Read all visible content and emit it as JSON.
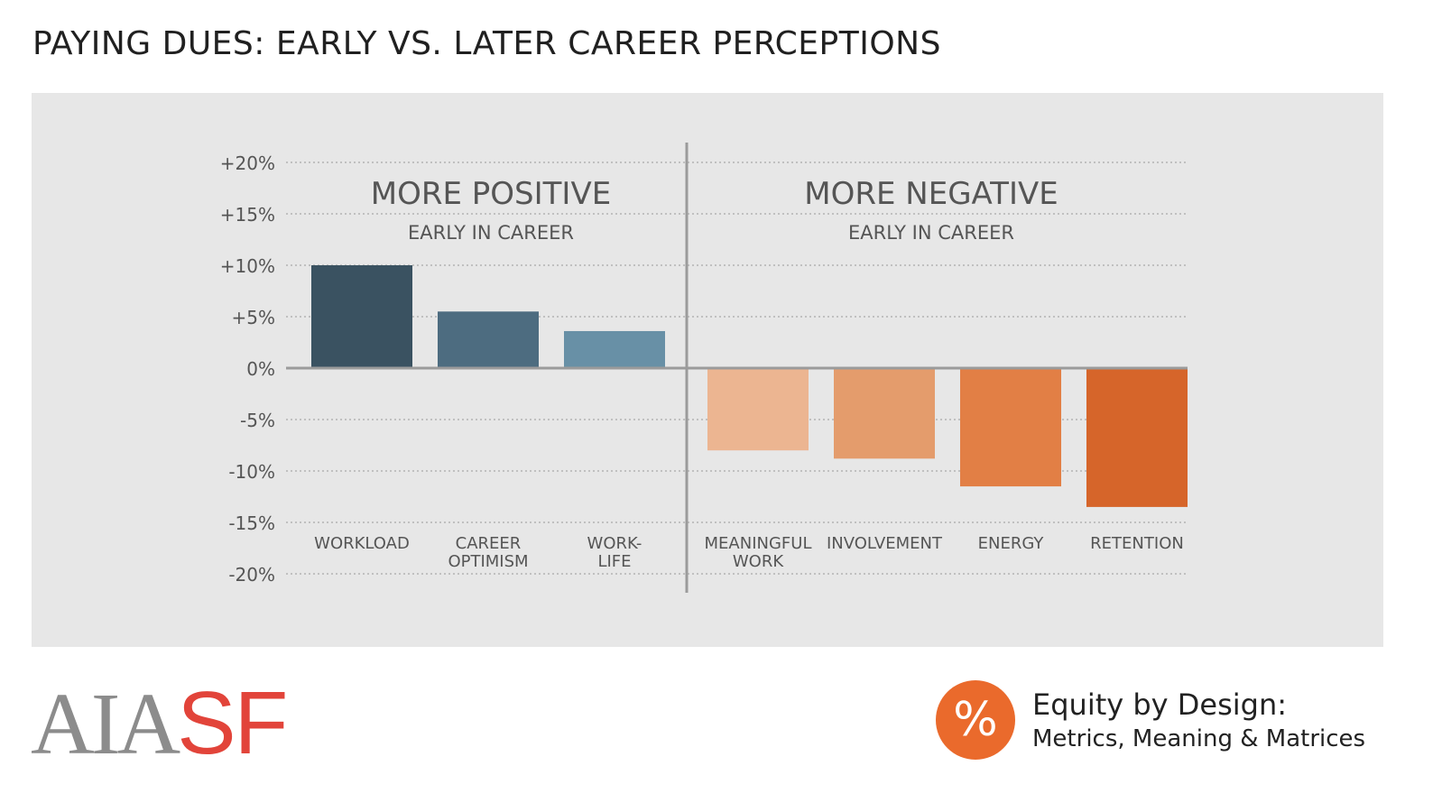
{
  "page": {
    "title": "PAYING DUES: EARLY VS. LATER CAREER PERCEPTIONS"
  },
  "chart_data": {
    "type": "bar",
    "title": "PAYING DUES: EARLY VS. LATER CAREER PERCEPTIONS",
    "ylim": [
      -20,
      20
    ],
    "yticks": [
      20,
      15,
      10,
      5,
      0,
      -5,
      -10,
      -15,
      -20
    ],
    "ytick_labels": [
      "+20%",
      "+15%",
      "+10%",
      "+5%",
      "0%",
      "-5%",
      "-10%",
      "-15%",
      "-20%"
    ],
    "grid": true,
    "sections": [
      {
        "heading": "MORE POSITIVE",
        "subheading": "EARLY IN CAREER"
      },
      {
        "heading": "MORE NEGATIVE",
        "subheading": "EARLY IN CAREER"
      }
    ],
    "categories": [
      {
        "label_lines": [
          "WORKLOAD"
        ],
        "value": 10,
        "color": "#3a5261"
      },
      {
        "label_lines": [
          "CAREER",
          "OPTIMISM"
        ],
        "value": 5.5,
        "color": "#4d6c80"
      },
      {
        "label_lines": [
          "WORK-",
          "LIFE"
        ],
        "value": 3.6,
        "color": "#6890a6"
      },
      {
        "label_lines": [
          "MEANINGFUL",
          "WORK"
        ],
        "value": -8,
        "color": "#ecb591"
      },
      {
        "label_lines": [
          "INVOLVEMENT"
        ],
        "value": -8.8,
        "color": "#e49c6c"
      },
      {
        "label_lines": [
          "ENERGY"
        ],
        "value": -11.5,
        "color": "#e27f45"
      },
      {
        "label_lines": [
          "RETENTION"
        ],
        "value": -13.5,
        "color": "#d6652a"
      }
    ],
    "colors": {
      "grid": "#9a9a9a",
      "zero_line": "#9b9b9b",
      "divider": "#9b9b9b",
      "text": "#555555",
      "heading": "#5f5f5f"
    }
  },
  "footer": {
    "logo_aia": "AIA",
    "logo_sf": "SF",
    "badge_symbol": "%",
    "edd_title": "Equity by Design:",
    "edd_subtitle": "Metrics, Meaning & Matrices",
    "colors": {
      "badge": "#ea6a2c",
      "logo_gray": "#8c8c8c",
      "logo_red": "#e2443a"
    }
  }
}
